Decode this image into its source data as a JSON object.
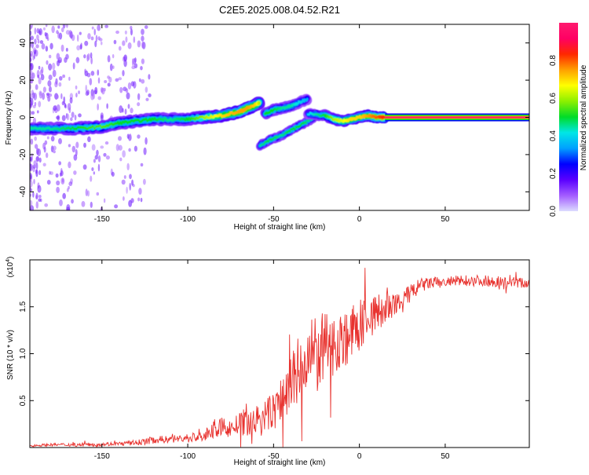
{
  "title": "C2E5.2025.008.04.52.R21",
  "colors": {
    "snr_line": "#e8322e",
    "ridge_core": "#ff2030",
    "colorbar_stops": [
      "#dcdcff",
      "#a35cff",
      "#5a00ff",
      "#0000ff",
      "#00a0ff",
      "#00e6e6",
      "#00dc28",
      "#8cf000",
      "#ffff00",
      "#ffa000",
      "#ff2800",
      "#ff0064",
      "#ff1a6e"
    ]
  },
  "chart_data": [
    {
      "id": "spectrogram",
      "type": "heatmap",
      "xlabel": "Height of straight line (km)",
      "ylabel": "Frequency (Hz)",
      "xlim": [
        -192,
        99
      ],
      "ylim": [
        -50,
        50
      ],
      "xticks": [
        -150,
        -100,
        -50,
        0,
        50
      ],
      "yticks": [
        -40,
        -20,
        0,
        20,
        40
      ],
      "colorbar": {
        "label": "Normalized spectral amplitude",
        "range": [
          0,
          1
        ],
        "ticks": [
          "0.0",
          "0.2",
          "0.4",
          "0.6",
          "0.8"
        ],
        "tick_values": [
          0,
          0.2,
          0.4,
          0.6,
          0.8
        ]
      },
      "ridge": {
        "x": [
          -192,
          -180,
          -165,
          -150,
          -140,
          -130,
          -120,
          -110,
          -100,
          -90,
          -80,
          -70,
          -65,
          -60,
          -58
        ],
        "y": [
          -6,
          -6,
          -6,
          -5,
          -3,
          -2,
          -1,
          -1,
          -1,
          0,
          1,
          3,
          5,
          7,
          8
        ],
        "amplitude": [
          0.45,
          0.45,
          0.5,
          0.55,
          0.5,
          0.5,
          0.5,
          0.45,
          0.5,
          0.6,
          0.7,
          0.75,
          0.75,
          0.7,
          0.6
        ]
      },
      "branch_upper": {
        "x": [
          -55,
          -50,
          -45,
          -40,
          -35,
          -30
        ],
        "y": [
          2,
          4,
          5,
          6,
          8,
          10
        ],
        "amplitude": [
          0.5,
          0.5,
          0.45,
          0.45,
          0.4,
          0.35
        ]
      },
      "branch_lower": {
        "x": [
          -58,
          -52,
          -46,
          -40,
          -34,
          -28,
          -24
        ],
        "y": [
          -15,
          -12,
          -10,
          -7,
          -4,
          -1,
          2
        ],
        "amplitude": [
          0.45,
          0.5,
          0.45,
          0.5,
          0.5,
          0.45,
          0.4
        ]
      },
      "near_zero": {
        "x": [
          -30,
          -20,
          -15,
          -10,
          -5,
          0,
          5,
          10,
          15
        ],
        "y": [
          2,
          1,
          -1,
          -2,
          -1,
          0,
          1,
          0,
          0
        ],
        "amplitude": [
          0.4,
          0.5,
          0.6,
          0.65,
          0.7,
          0.7,
          0.75,
          0.8,
          0.85
        ]
      },
      "constant_line": {
        "x_start": 15,
        "x_end": 99,
        "y": 0,
        "amplitude": 1.0
      }
    },
    {
      "id": "snr",
      "type": "line",
      "xlabel": "Height of straight line (km)",
      "ylabel": "SNR (10 * v/v)",
      "y_multiplier": "(x10",
      "y_multiplier_exp": "4",
      "y_multiplier_close": ")",
      "xlim": [
        -192,
        99
      ],
      "ylim": [
        0,
        2.0
      ],
      "xticks": [
        -150,
        -100,
        -50,
        0,
        50
      ],
      "yticks": [
        0.5,
        1.0,
        1.5
      ],
      "ytick_labels": [
        "0.5",
        "1.0",
        "1.5"
      ],
      "series": [
        {
          "x": [
            -192,
            -180,
            -160,
            -140,
            -130,
            -120,
            -110,
            -100,
            -95,
            -90,
            -85,
            -80,
            -75,
            -70,
            -65,
            -60,
            -55,
            -50,
            -45,
            -40,
            -35,
            -30,
            -25,
            -20,
            -15,
            -10,
            -5,
            0,
            5,
            10,
            15,
            20,
            25,
            30,
            35,
            40,
            50,
            60,
            70,
            80,
            90,
            99
          ],
          "y": [
            0.02,
            0.03,
            0.03,
            0.04,
            0.05,
            0.08,
            0.09,
            0.1,
            0.11,
            0.12,
            0.2,
            0.22,
            0.2,
            0.25,
            0.25,
            0.3,
            0.32,
            0.4,
            0.5,
            0.7,
            0.8,
            0.9,
            1.0,
            1.05,
            1.1,
            1.15,
            1.2,
            1.3,
            1.4,
            1.42,
            1.48,
            1.5,
            1.55,
            1.65,
            1.72,
            1.75,
            1.76,
            1.78,
            1.78,
            1.77,
            1.76,
            1.75
          ],
          "noise": [
            0.01,
            0.015,
            0.02,
            0.02,
            0.03,
            0.04,
            0.04,
            0.05,
            0.06,
            0.06,
            0.1,
            0.1,
            0.1,
            0.12,
            0.14,
            0.15,
            0.18,
            0.22,
            0.28,
            0.35,
            0.4,
            0.42,
            0.45,
            0.38,
            0.33,
            0.32,
            0.3,
            0.28,
            0.25,
            0.22,
            0.18,
            0.14,
            0.12,
            0.1,
            0.08,
            0.07,
            0.06,
            0.06,
            0.06,
            0.06,
            0.06,
            0.06
          ]
        }
      ]
    }
  ]
}
